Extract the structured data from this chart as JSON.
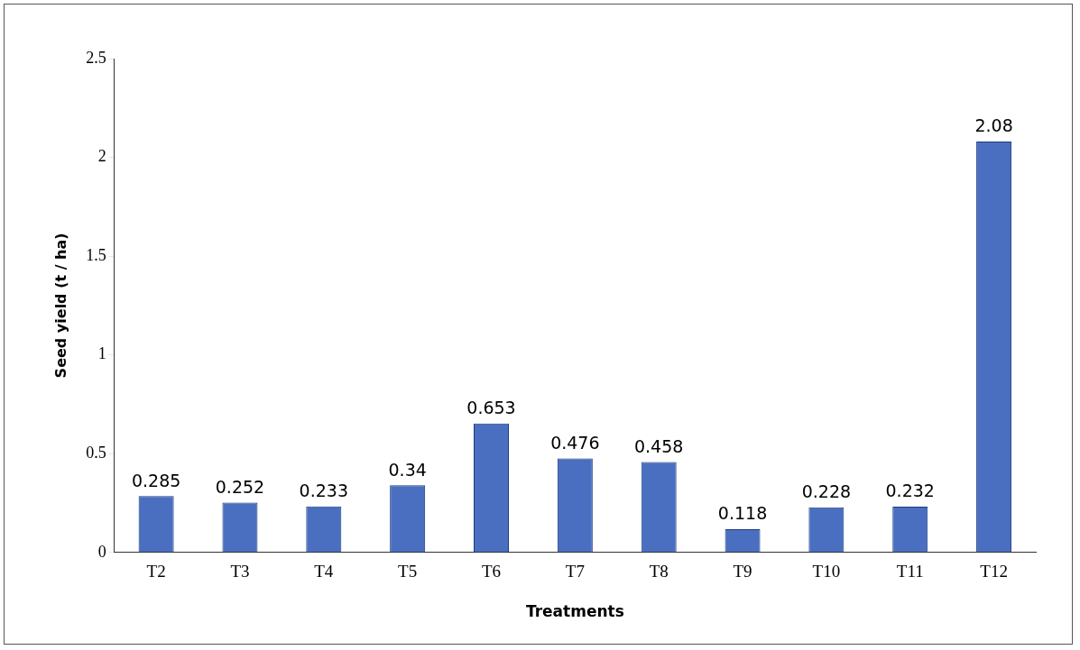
{
  "chart_data": {
    "type": "bar",
    "xlabel": "Treatments",
    "ylabel": "Seed yield (t / ha)",
    "categories": [
      "T2",
      "T3",
      "T4",
      "T5",
      "T6",
      "T7",
      "T8",
      "T9",
      "T10",
      "T11",
      "T12"
    ],
    "values": [
      0.285,
      0.252,
      0.233,
      0.34,
      0.653,
      0.476,
      0.458,
      0.118,
      0.228,
      0.232,
      2.08
    ],
    "color": "#4a6fc0",
    "ylim": [
      0,
      2.5
    ],
    "yticks": [
      0,
      0.5,
      1,
      1.5,
      2,
      2.5
    ],
    "grid": false,
    "legend": false,
    "data_labels": true
  }
}
